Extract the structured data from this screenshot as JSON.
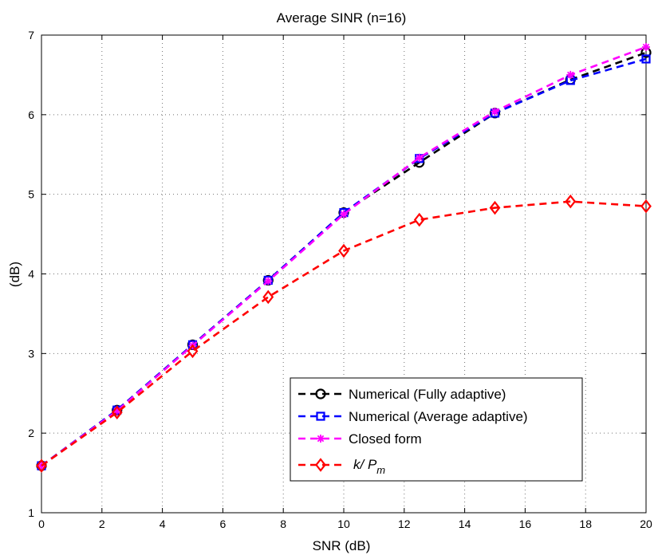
{
  "chart_data": {
    "type": "line",
    "title": "Average SINR (n=16)",
    "xlabel": "SNR (dB)",
    "ylabel": "(dB)",
    "xlim": [
      0,
      20
    ],
    "ylim": [
      1,
      7
    ],
    "xticks": [
      0,
      2,
      4,
      6,
      8,
      10,
      12,
      14,
      16,
      18,
      20
    ],
    "yticks": [
      1,
      2,
      3,
      4,
      5,
      6,
      7
    ],
    "grid": true,
    "legend_position": "bottom-right",
    "x": [
      0,
      2.5,
      5,
      7.5,
      10,
      12.5,
      15,
      17.5,
      20
    ],
    "series": [
      {
        "name": "Numerical (Fully adaptive)",
        "color": "#000000",
        "marker": "circle",
        "values": [
          1.59,
          2.29,
          3.11,
          3.92,
          4.77,
          5.4,
          6.02,
          6.44,
          6.78
        ]
      },
      {
        "name": "Numerical (Average adaptive)",
        "color": "#0000ff",
        "marker": "square",
        "values": [
          1.59,
          2.29,
          3.11,
          3.92,
          4.77,
          5.45,
          6.02,
          6.43,
          6.7
        ]
      },
      {
        "name": "Closed form",
        "color": "#ff00ff",
        "marker": "star",
        "values": [
          1.59,
          2.28,
          3.1,
          3.91,
          4.75,
          5.46,
          6.04,
          6.5,
          6.85
        ]
      },
      {
        "name": "k/ P_m",
        "color": "#ff0000",
        "marker": "diamond",
        "values": [
          1.59,
          2.26,
          3.03,
          3.71,
          4.29,
          4.68,
          4.83,
          4.91,
          4.85
        ]
      }
    ]
  },
  "legend": {
    "items": [
      {
        "label": "Numerical (Fully adaptive)"
      },
      {
        "label": "Numerical (Average adaptive)"
      },
      {
        "label": "Closed form"
      },
      {
        "label_main": "k/ P",
        "label_sub": "m"
      }
    ]
  }
}
